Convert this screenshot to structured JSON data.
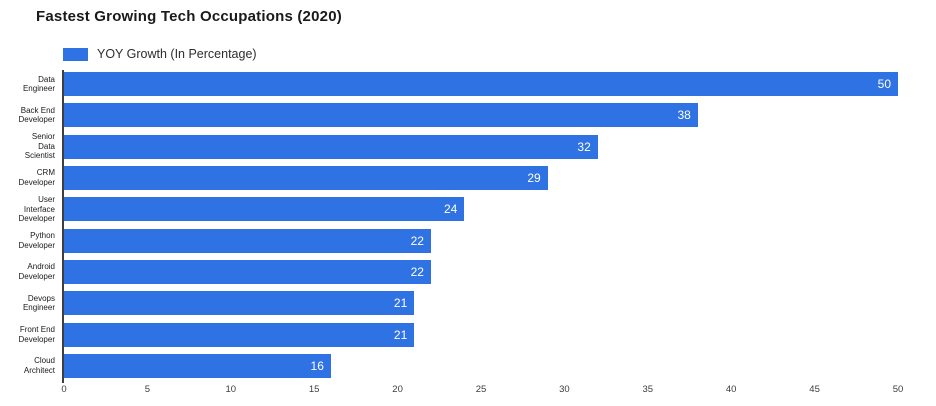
{
  "title": "Fastest Growing Tech Occupations (2020)",
  "legend": {
    "label": "YOY Growth (In Percentage)"
  },
  "colors": {
    "bar": "#2f72e3",
    "title": "#1a1a1a",
    "axis": "#3f3f3f",
    "value_label": "#ffffff"
  },
  "chart_data": {
    "type": "bar",
    "orientation": "horizontal",
    "title": "Fastest Growing Tech Occupations (2020)",
    "legend_entries": [
      "YOY Growth (In Percentage)"
    ],
    "legend_position": "top-left",
    "categories": [
      "Data\nEngineer",
      "Back End\nDeveloper",
      "Senior\nData\nScientist",
      "CRM\nDeveloper",
      "User\nInterface\nDeveloper",
      "Python\nDeveloper",
      "Android\nDeveloper",
      "Devops\nEngineer",
      "Front End\nDeveloper",
      "Cloud\nArchitect"
    ],
    "values": [
      50,
      38,
      32,
      29,
      24,
      22,
      22,
      21,
      21,
      16
    ],
    "xlabel": "",
    "ylabel": "",
    "xlim": [
      0,
      50
    ],
    "xticks": [
      0,
      5,
      10,
      15,
      20,
      25,
      30,
      35,
      40,
      45,
      50
    ],
    "grid": false,
    "value_labels": "inside-end"
  }
}
